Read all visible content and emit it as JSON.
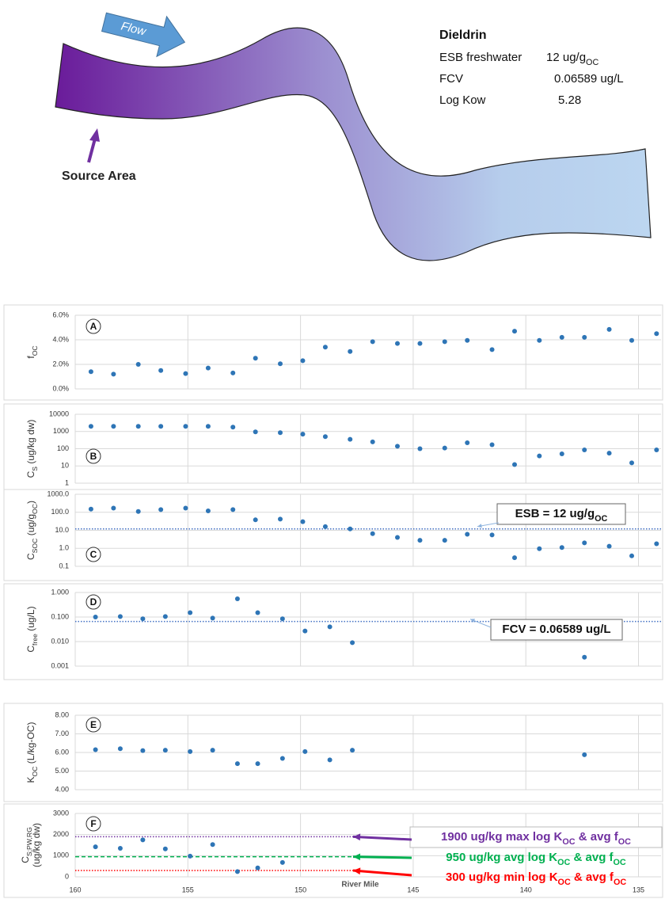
{
  "diagram": {
    "flow": "Flow",
    "source": "Source Area",
    "info": {
      "title": "Dieldrin",
      "rows": [
        {
          "label": "ESB freshwater",
          "value": [
            {
              "text": "12 ug/g"
            },
            {
              "sub": "OC"
            }
          ]
        },
        {
          "label": "FCV",
          "value": [
            {
              "text": "0.06589 ug/L"
            }
          ]
        },
        {
          "label": "Log Kow",
          "value": [
            {
              "text": "5.28"
            }
          ]
        }
      ]
    }
  },
  "chart_data": [
    {
      "type": "scatter",
      "panel": "A",
      "color": "#2e75b6",
      "y_label": [
        [
          {
            "text": "f"
          },
          {
            "sub": "OC"
          }
        ]
      ],
      "x": [
        159.3,
        158.3,
        157.2,
        156.2,
        155.1,
        154.1,
        153.0,
        152.0,
        150.9,
        149.9,
        148.9,
        147.8,
        146.8,
        145.7,
        144.7,
        143.6,
        142.6,
        141.5,
        140.5,
        139.4,
        138.4,
        137.4,
        136.3,
        135.3,
        134.2
      ],
      "values": [
        1.4,
        1.2,
        2.0,
        1.5,
        1.25,
        1.7,
        1.3,
        2.5,
        2.05,
        2.3,
        3.4,
        3.05,
        3.85,
        3.7,
        3.7,
        3.85,
        3.95,
        3.2,
        4.7,
        3.95,
        4.2,
        4.2,
        4.85,
        3.95,
        4.5
      ],
      "xlim": [
        160,
        134
      ],
      "ylim": [
        0,
        6
      ],
      "yticks": [
        {
          "value": 0,
          "label": "0.0%"
        },
        {
          "value": 2,
          "label": "2.0%"
        },
        {
          "value": 4,
          "label": "4.0%"
        },
        {
          "value": 6,
          "label": "6.0%"
        }
      ]
    },
    {
      "type": "scatter",
      "panel": "B",
      "color": "#2e75b6",
      "log_scale": true,
      "y_label": [
        [
          {
            "text": "C"
          },
          {
            "sub": "S"
          },
          {
            "text": " (ug/kg dw)"
          }
        ]
      ],
      "x": [
        159.3,
        158.3,
        157.2,
        156.2,
        155.1,
        154.1,
        153.0,
        152.0,
        150.9,
        149.9,
        148.9,
        147.8,
        146.8,
        145.7,
        144.7,
        143.6,
        142.6,
        141.5,
        140.5,
        139.4,
        138.4,
        137.4,
        136.3,
        135.3,
        134.2
      ],
      "values": [
        2000,
        2000,
        2000,
        2000,
        2000,
        2000,
        1800,
        950,
        850,
        700,
        500,
        350,
        250,
        140,
        100,
        110,
        220,
        170,
        12,
        38,
        50,
        85,
        55,
        15,
        85
      ],
      "xlim": [
        160,
        134
      ],
      "ylim": [
        1,
        10000
      ],
      "yticks": [
        1,
        10,
        100,
        1000,
        10000
      ]
    },
    {
      "type": "scatter",
      "panel": "C",
      "color": "#2e75b6",
      "log_scale": true,
      "y_label": [
        [
          {
            "text": "C"
          },
          {
            "sub": "SOC"
          },
          {
            "text": " (ug/g"
          },
          {
            "sub": "OC"
          },
          {
            "text": ")"
          }
        ]
      ],
      "x": [
        159.3,
        158.3,
        157.2,
        156.2,
        155.1,
        154.1,
        153.0,
        152.0,
        150.9,
        149.9,
        148.9,
        147.8,
        146.8,
        145.7,
        144.7,
        143.6,
        142.6,
        141.5,
        140.5,
        139.4,
        138.4,
        137.4,
        136.3,
        135.3,
        134.2
      ],
      "values": [
        150,
        170,
        110,
        140,
        170,
        120,
        140,
        38,
        42,
        30,
        16,
        12,
        6.5,
        4,
        2.8,
        2.8,
        6,
        5.5,
        0.3,
        0.95,
        1.1,
        2,
        1.3,
        0.38,
        1.8
      ],
      "xlim": [
        160,
        134
      ],
      "ylim": [
        0.1,
        1000
      ],
      "yticks": [
        {
          "value": 0.1,
          "label": "0.1"
        },
        {
          "value": 1,
          "label": "1.0"
        },
        {
          "value": 10,
          "label": "10.0"
        },
        {
          "value": 100,
          "label": "100.0"
        },
        {
          "value": 1000,
          "label": "1000.0"
        }
      ],
      "ref_lines": [
        {
          "value": 12,
          "color": "#4472c4",
          "style": "dotted",
          "label": [
            {
              "text": "ESB = 12 ug/g"
            },
            {
              "sub": "OC"
            }
          ]
        }
      ]
    },
    {
      "type": "scatter",
      "panel": "D",
      "color": "#2e75b6",
      "log_scale": true,
      "y_label": [
        [
          {
            "text": "C"
          },
          {
            "sub": "free"
          },
          {
            "text": " (ug/L)"
          }
        ]
      ],
      "x": [
        159.1,
        158.0,
        157.0,
        156.0,
        154.9,
        153.9,
        152.8,
        151.9,
        150.8,
        149.8,
        148.7,
        147.7,
        137.4
      ],
      "values": [
        0.1,
        0.105,
        0.085,
        0.105,
        0.15,
        0.09,
        0.55,
        0.15,
        0.085,
        0.027,
        0.04,
        0.009,
        0.0023
      ],
      "xlim": [
        160,
        134
      ],
      "ylim": [
        0.001,
        1
      ],
      "yticks": [
        {
          "value": 0.001,
          "label": "0.001"
        },
        {
          "value": 0.01,
          "label": "0.010"
        },
        {
          "value": 0.1,
          "label": "0.100"
        },
        {
          "value": 1,
          "label": "1.000"
        }
      ],
      "ref_lines": [
        {
          "value": 0.06589,
          "color": "#4472c4",
          "style": "dotted",
          "label": [
            {
              "text": "FCV = 0.06589 ug/L"
            }
          ]
        }
      ]
    },
    {
      "type": "scatter",
      "panel": "E",
      "color": "#2e75b6",
      "y_label": [
        [
          {
            "text": "K"
          },
          {
            "sub": "OC"
          },
          {
            "text": " (L/kg-OC)"
          }
        ]
      ],
      "x": [
        159.1,
        158.0,
        157.0,
        156.0,
        154.9,
        153.9,
        152.8,
        151.9,
        150.8,
        149.8,
        148.7,
        147.7,
        137.4
      ],
      "values": [
        6.15,
        6.2,
        6.1,
        6.12,
        6.05,
        6.12,
        5.4,
        5.4,
        5.68,
        6.05,
        5.6,
        6.12,
        5.88
      ],
      "xlim": [
        160,
        134
      ],
      "ylim": [
        4,
        8
      ],
      "yticks": [
        {
          "value": 4,
          "label": "4.00"
        },
        {
          "value": 5,
          "label": "5.00"
        },
        {
          "value": 6,
          "label": "6.00"
        },
        {
          "value": 7,
          "label": "7.00"
        },
        {
          "value": 8,
          "label": "8.00"
        }
      ]
    },
    {
      "type": "scatter",
      "panel": "F",
      "color": "#2e75b6",
      "y_label": [
        [
          {
            "text": "C"
          },
          {
            "sub": "S;PW,RG"
          }
        ],
        [
          {
            "text": "(ug/kg dw)"
          }
        ]
      ],
      "x": [
        159.1,
        158.0,
        157.0,
        156.0,
        154.9,
        153.9,
        152.8,
        151.9,
        150.8
      ],
      "values": [
        1420,
        1350,
        1750,
        1320,
        980,
        1530,
        250,
        420,
        680
      ],
      "xlim": [
        160,
        134
      ],
      "ylim": [
        0,
        3000
      ],
      "yticks": [
        0,
        1000,
        2000,
        3000
      ],
      "xticks": [
        160,
        155,
        150,
        145,
        140,
        135
      ],
      "x_label": "River Mile",
      "ref_lines": [
        {
          "value": 1900,
          "color": "#7030a0",
          "style": "dotted",
          "label": [
            {
              "text": "1900 ug/kg  max log K"
            },
            {
              "sub": "OC"
            },
            {
              "text": " & avg f"
            },
            {
              "sub": "OC"
            }
          ]
        },
        {
          "value": 950,
          "color": "#00b050",
          "style": "dashed",
          "label": [
            {
              "text": "950 ug/kg  avg log K"
            },
            {
              "sub": "OC"
            },
            {
              "text": " & avg f"
            },
            {
              "sub": "OC"
            }
          ]
        },
        {
          "value": 300,
          "color": "#ff0000",
          "style": "dotted",
          "label": [
            {
              "text": "300 ug/kg  min log K"
            },
            {
              "sub": "OC"
            },
            {
              "text": " & avg f"
            },
            {
              "sub": "OC"
            }
          ]
        }
      ]
    }
  ]
}
